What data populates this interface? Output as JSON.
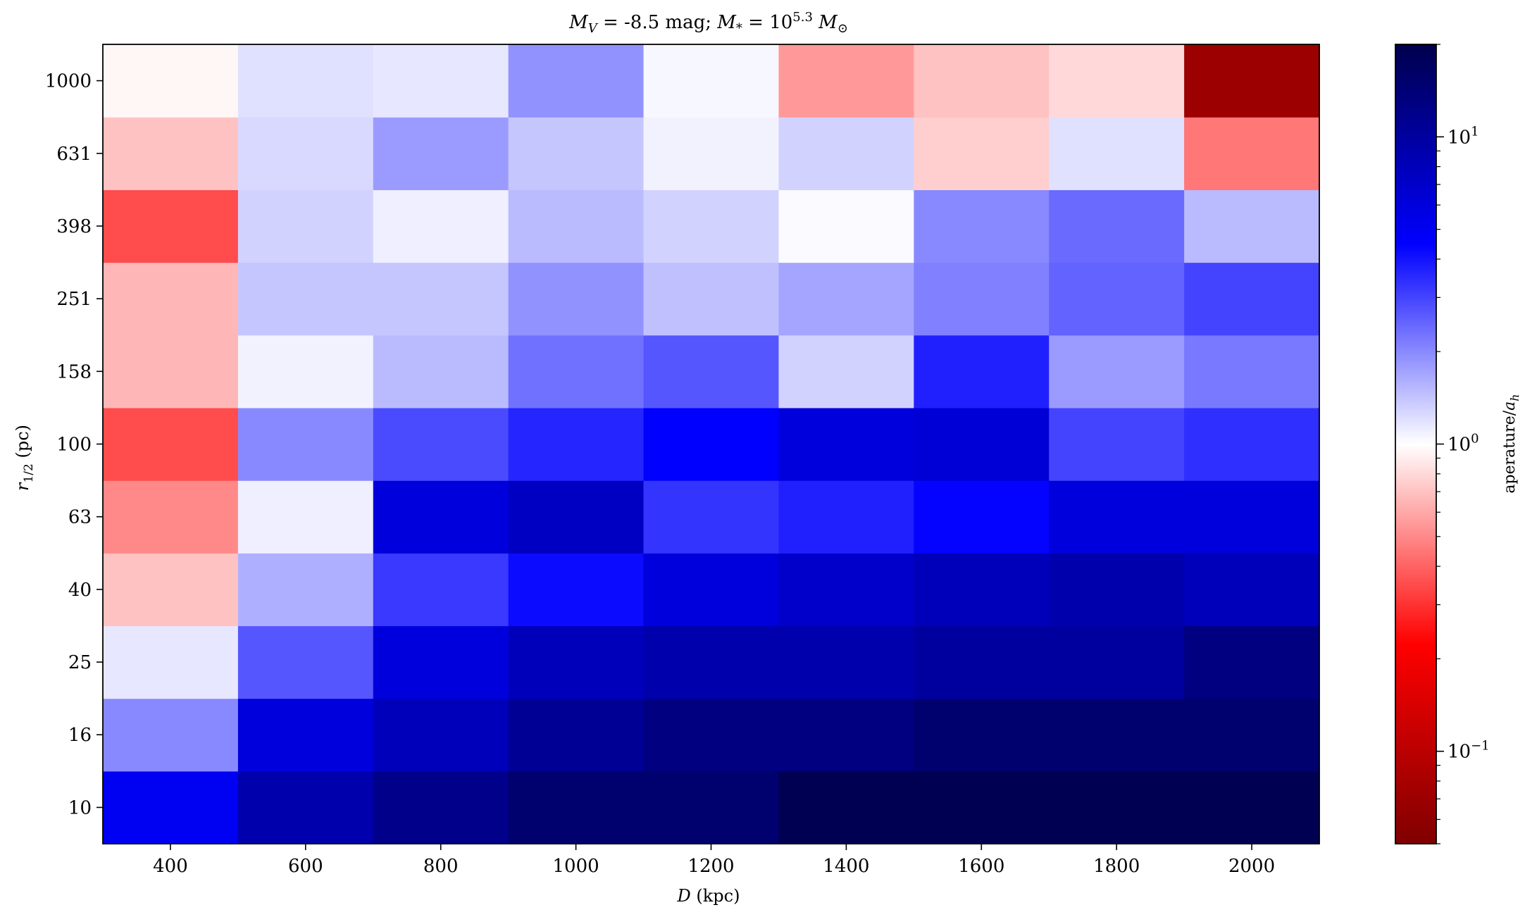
{
  "chart_data": {
    "type": "heatmap",
    "title_parts": {
      "a": "M",
      "a_sub": "V",
      "b": " = -8.5 mag; ",
      "c": "M",
      "c_sub": "*",
      "d": " = 10",
      "d_sup": "5.3",
      "e": " M",
      "e_sub": "⊙"
    },
    "xlabel_parts": {
      "var": "D",
      "unit": " (kpc)"
    },
    "ylabel_parts": {
      "var": "r",
      "sub": "1/2",
      "unit": " (pc)"
    },
    "colorbar_label_parts": {
      "text": "aperature/",
      "var": "a",
      "sub": "h"
    },
    "x_categories": [
      400,
      600,
      800,
      1000,
      1200,
      1400,
      1600,
      1800,
      2000
    ],
    "x_tick_labels": [
      "400",
      "600",
      "800",
      "1000",
      "1200",
      "1400",
      "1600",
      "1800",
      "2000"
    ],
    "xlim": [
      300,
      2100
    ],
    "y_categories": [
      10,
      16,
      25,
      40,
      63,
      100,
      158,
      251,
      398,
      631,
      1000
    ],
    "y_tick_labels": [
      "10",
      "16",
      "25",
      "40",
      "63",
      "100",
      "158",
      "251",
      "398",
      "631",
      "1000"
    ],
    "colorbar": {
      "scale": "log",
      "range": [
        0.05,
        20
      ],
      "colormap": "seismic_r",
      "tick_labels": [
        {
          "value": 0.1,
          "base": "10",
          "exp": "−1"
        },
        {
          "value": 1,
          "base": "10",
          "exp": "0"
        },
        {
          "value": 10,
          "base": "10",
          "exp": "1"
        }
      ]
    },
    "values": [
      [
        5.0,
        9.0,
        12.0,
        15.0,
        15.0,
        19.0,
        19.0,
        19.0,
        19.0
      ],
      [
        2.0,
        6.0,
        8.0,
        11.0,
        13.0,
        13.0,
        15.0,
        15.0,
        15.0
      ],
      [
        1.15,
        2.7,
        6.0,
        8.0,
        9.0,
        9.0,
        10.0,
        10.0,
        13.0
      ],
      [
        0.7,
        1.6,
        3.2,
        4.2,
        6.0,
        7.0,
        8.0,
        9.0,
        8.0
      ],
      [
        0.5,
        1.1,
        6.0,
        7.5,
        3.3,
        3.7,
        4.4,
        6.0,
        6.0
      ],
      [
        0.35,
        2.0,
        2.9,
        3.6,
        4.5,
        6.0,
        6.3,
        3.0,
        3.4
      ],
      [
        0.65,
        1.08,
        1.5,
        2.3,
        2.7,
        1.3,
        3.7,
        1.8,
        2.2
      ],
      [
        0.65,
        1.4,
        1.4,
        1.9,
        1.45,
        1.7,
        2.1,
        2.5,
        3.0
      ],
      [
        0.35,
        1.3,
        1.1,
        1.5,
        1.3,
        1.03,
        2.0,
        2.4,
        1.5
      ],
      [
        0.7,
        1.25,
        1.8,
        1.4,
        1.08,
        1.3,
        0.75,
        1.2,
        0.45
      ],
      [
        0.95,
        1.2,
        1.15,
        1.9,
        1.05,
        0.55,
        0.7,
        0.8,
        0.07
      ]
    ]
  }
}
